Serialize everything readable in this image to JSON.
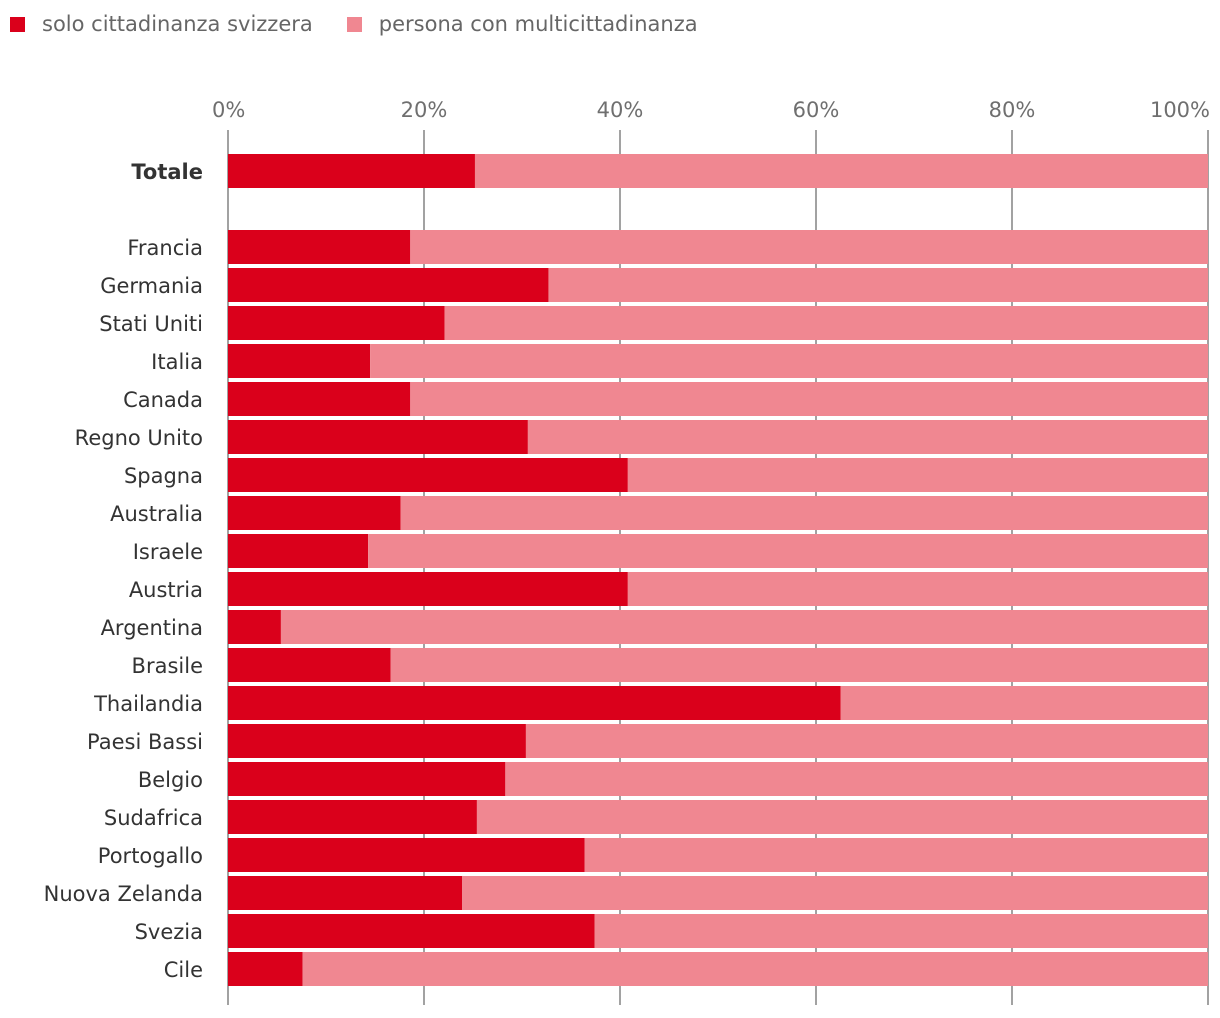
{
  "chart_data": {
    "type": "bar",
    "orientation": "horizontal",
    "stacked": true,
    "title": "",
    "xlabel": "",
    "ylabel": "",
    "xlim": [
      0,
      100
    ],
    "x_ticks": [
      "0%",
      "20%",
      "40%",
      "60%",
      "80%",
      "100%"
    ],
    "grid": true,
    "legend_position": "top-left",
    "categories": [
      "Totale",
      "Francia",
      "Germania",
      "Stati Uniti",
      "Italia",
      "Canada",
      "Regno Unito",
      "Spagna",
      "Australia",
      "Israele",
      "Austria",
      "Argentina",
      "Brasile",
      "Thailandia",
      "Paesi Bassi",
      "Belgio",
      "Sudafrica",
      "Portogallo",
      "Nuova Zelanda",
      "Svezia",
      "Cile"
    ],
    "bold_categories": [
      "Totale"
    ],
    "series": [
      {
        "name": "solo cittadinanza svizzera",
        "color": "#DA001B",
        "values": [
          25.2,
          18.6,
          32.7,
          22.1,
          14.5,
          18.6,
          30.6,
          40.8,
          17.6,
          14.3,
          40.8,
          5.4,
          16.6,
          62.5,
          30.4,
          28.3,
          25.4,
          36.4,
          23.9,
          37.4,
          7.6
        ]
      },
      {
        "name": "persona con multicittadinanza",
        "color": "#F08791",
        "values": [
          74.8,
          81.4,
          67.3,
          77.9,
          85.5,
          81.4,
          69.4,
          59.2,
          82.4,
          85.7,
          59.2,
          94.6,
          83.4,
          37.5,
          69.6,
          71.7,
          74.6,
          63.6,
          76.1,
          62.6,
          92.4
        ]
      }
    ]
  }
}
